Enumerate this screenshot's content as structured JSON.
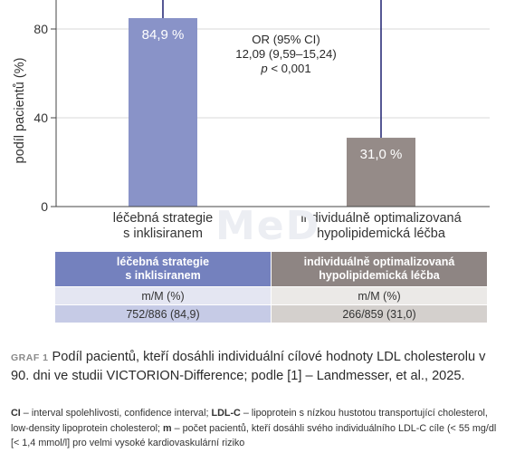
{
  "chart_data": {
    "type": "bar",
    "categories": [
      [
        "léčebná strategie",
        "s inklisiranem"
      ],
      [
        "individuálně optimalizovaná",
        "hypolipidemická léčba"
      ]
    ],
    "values": [
      84.9,
      31.0
    ],
    "value_labels": [
      "84,9 %",
      "31,0 %"
    ],
    "colors": [
      "#8993c8",
      "#958b88"
    ],
    "error_line_color": "#2b2f7a",
    "ylabel": "podíl pacientů (%)",
    "yticks": [
      "0",
      "40",
      "80"
    ],
    "ytick_values": [
      0,
      40,
      80
    ],
    "ylim": [
      0,
      100
    ],
    "grid": true,
    "annotation": {
      "line1": "OR (95% CI)",
      "line2": "12,09 (9,59–15,24)",
      "line3_italic": "p",
      "line3_rest": " < 0,001"
    }
  },
  "watermark": "MeD",
  "table": {
    "headers": [
      [
        "léčebná strategie",
        "s inklisiranem"
      ],
      [
        "individuálně optimalizovaná",
        "hypolipidemická léčba"
      ]
    ],
    "rows": [
      [
        "m/M (%)",
        "m/M (%)"
      ],
      [
        "752/886 (84,9)",
        "266/859 (31,0)"
      ]
    ]
  },
  "caption": {
    "label": "GRAF 1",
    "text": "Podíl pacientů, kteří dosáhli individuální cílové hodnoty LDL cholesterolu v 90. dni ve studii VICTORION-Difference; podle [1] – Landmesser, et al., 2025."
  },
  "notes": [
    {
      "term": "CI",
      "text": " – interval spolehlivosti, confidence interval; "
    },
    {
      "term": "LDL-C",
      "text": " – lipoprotein s nízkou hustotou transportující cholesterol, low-density lipoprotein cholesterol; "
    },
    {
      "term": "m",
      "text": " – počet pacientů, kteří dosáhli svého individuálního LDL-C cíle (< 55 mg/dl [< 1,4 mmol/l] pro velmi vysoké kardiovaskulární riziko"
    }
  ]
}
